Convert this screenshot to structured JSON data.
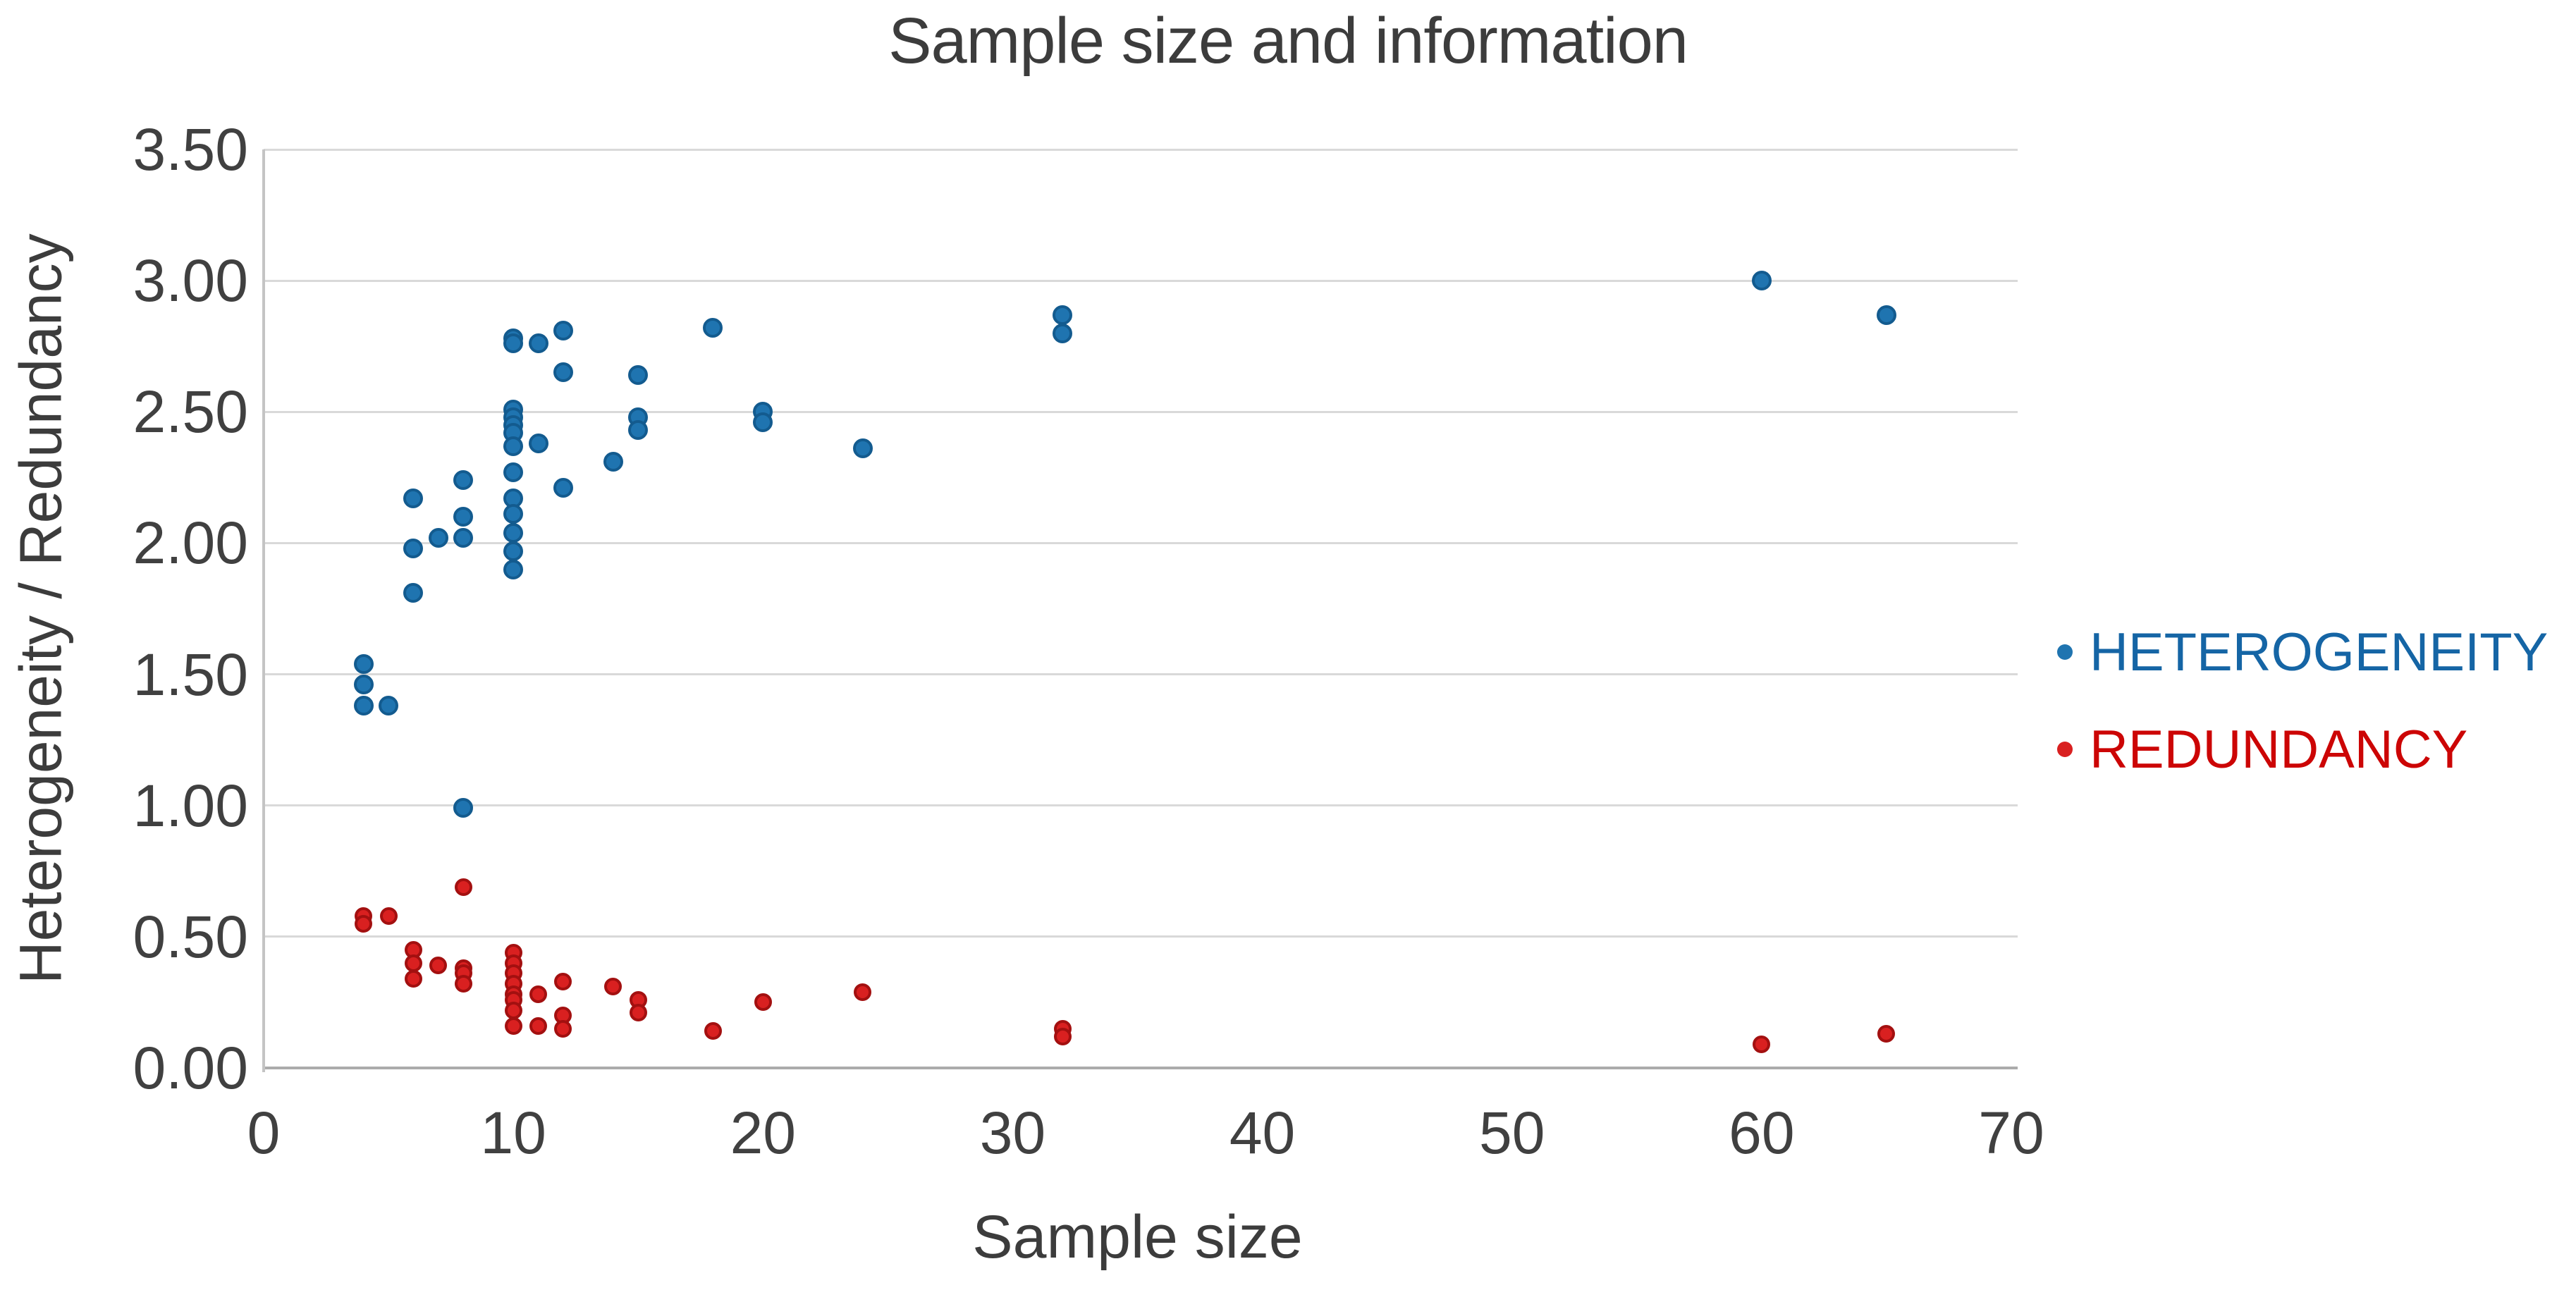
{
  "page": {
    "background": "#FFFFFF"
  },
  "chart_data": {
    "type": "scatter",
    "title": "Sample size and information",
    "xlabel": "Sample size",
    "ylabel": "Heterogeneity / Redundancy",
    "xlim": [
      0,
      70
    ],
    "ylim": [
      0,
      3.5
    ],
    "x_ticks": {
      "values": [
        0,
        10,
        20,
        30,
        40,
        50,
        60,
        70
      ],
      "labels": [
        "0",
        "10",
        "20",
        "30",
        "40",
        "50",
        "60",
        "70"
      ]
    },
    "y_ticks": {
      "values": [
        0,
        0.5,
        1,
        1.5,
        2,
        2.5,
        3,
        3.5
      ],
      "labels": [
        "0.00",
        "0.50",
        "1.00",
        "1.50",
        "2.00",
        "2.50",
        "3.00",
        "3.50"
      ]
    },
    "grid": {
      "horizontal": true,
      "vertical": false
    },
    "legend": {
      "position": "right",
      "entries": [
        {
          "label": "HETEROGENEITY",
          "text_color": "#1565A5",
          "marker_color": "#1F74B0"
        },
        {
          "label": "REDUNDANCY",
          "text_color": "#CC0505",
          "marker_color": "#D92020"
        }
      ]
    },
    "series": [
      {
        "name": "HETEROGENEITY",
        "marker_color": "#1F74B0",
        "marker_edge_color": "#135B8F",
        "points": [
          [
            4,
            1.54
          ],
          [
            4,
            1.46
          ],
          [
            4,
            1.38
          ],
          [
            5,
            1.38
          ],
          [
            6,
            2.17
          ],
          [
            6,
            1.98
          ],
          [
            6,
            1.81
          ],
          [
            7,
            2.02
          ],
          [
            8,
            2.24
          ],
          [
            8,
            2.1
          ],
          [
            8,
            2.02
          ],
          [
            8,
            0.99
          ],
          [
            10,
            2.78
          ],
          [
            10,
            2.76
          ],
          [
            10,
            2.51
          ],
          [
            10,
            2.48
          ],
          [
            10,
            2.45
          ],
          [
            10,
            2.42
          ],
          [
            10,
            2.37
          ],
          [
            10,
            2.27
          ],
          [
            10,
            2.17
          ],
          [
            10,
            2.11
          ],
          [
            10,
            2.04
          ],
          [
            10,
            1.97
          ],
          [
            10,
            1.9
          ],
          [
            11,
            2.76
          ],
          [
            11,
            2.38
          ],
          [
            12,
            2.81
          ],
          [
            12,
            2.65
          ],
          [
            12,
            2.21
          ],
          [
            14,
            2.31
          ],
          [
            15,
            2.64
          ],
          [
            15,
            2.48
          ],
          [
            15,
            2.43
          ],
          [
            18,
            2.82
          ],
          [
            20,
            2.5
          ],
          [
            20,
            2.46
          ],
          [
            24,
            2.36
          ],
          [
            32,
            2.87
          ],
          [
            32,
            2.8
          ],
          [
            60,
            3.0
          ],
          [
            65,
            2.87
          ]
        ]
      },
      {
        "name": "REDUNDANCY",
        "marker_color": "#D92020",
        "marker_edge_color": "#A31010",
        "points": [
          [
            4,
            0.58
          ],
          [
            4,
            0.55
          ],
          [
            5,
            0.58
          ],
          [
            6,
            0.45
          ],
          [
            6,
            0.4
          ],
          [
            6,
            0.34
          ],
          [
            7,
            0.39
          ],
          [
            8,
            0.69
          ],
          [
            8,
            0.38
          ],
          [
            8,
            0.36
          ],
          [
            8,
            0.32
          ],
          [
            10,
            0.44
          ],
          [
            10,
            0.4
          ],
          [
            10,
            0.36
          ],
          [
            10,
            0.32
          ],
          [
            10,
            0.28
          ],
          [
            10,
            0.26
          ],
          [
            10,
            0.22
          ],
          [
            10,
            0.16
          ],
          [
            11,
            0.28
          ],
          [
            11,
            0.16
          ],
          [
            12,
            0.33
          ],
          [
            12,
            0.2
          ],
          [
            12,
            0.15
          ],
          [
            14,
            0.31
          ],
          [
            15,
            0.26
          ],
          [
            15,
            0.21
          ],
          [
            18,
            0.14
          ],
          [
            20,
            0.25
          ],
          [
            24,
            0.29
          ],
          [
            32,
            0.15
          ],
          [
            32,
            0.12
          ],
          [
            60,
            0.09
          ],
          [
            65,
            0.13
          ]
        ]
      }
    ],
    "colors": {
      "title": "#3C3C3C",
      "axis_label": "#3C3C3C",
      "tick_label": "#404040",
      "gridline": "#D9D9D9",
      "zero_line": "#ABABAB",
      "axis_line": "#C4C4C4",
      "background": "#FFFFFF"
    }
  }
}
